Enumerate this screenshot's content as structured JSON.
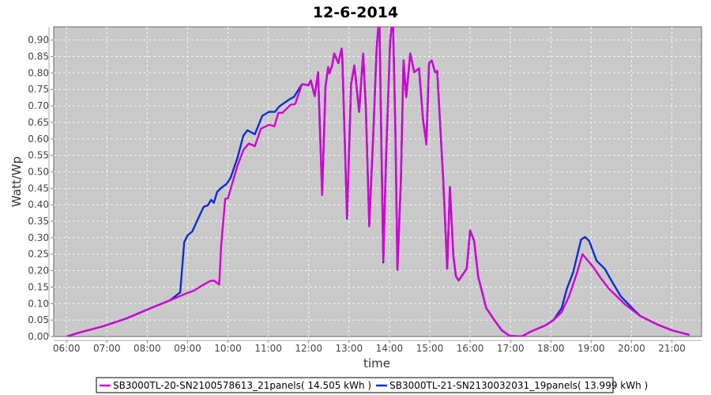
{
  "chart_data": {
    "type": "line",
    "title": "12-6-2014",
    "xlabel": "time",
    "ylabel": "Watt/Wp",
    "xlim": [
      "05:41",
      "21:44"
    ],
    "ylim": [
      0,
      0.94
    ],
    "grid": true,
    "legend_position": "bottom",
    "plot_background": "#c9c9c9",
    "x_ticks": [
      "06:00",
      "07:00",
      "08:00",
      "09:00",
      "10:00",
      "11:00",
      "12:00",
      "13:00",
      "14:00",
      "15:00",
      "16:00",
      "17:00",
      "18:00",
      "19:00",
      "20:00",
      "21:00"
    ],
    "y_ticks": [
      "0.00",
      "0.05",
      "0.10",
      "0.15",
      "0.20",
      "0.25",
      "0.30",
      "0.35",
      "0.40",
      "0.45",
      "0.50",
      "0.55",
      "0.60",
      "0.65",
      "0.70",
      "0.75",
      "0.80",
      "0.85",
      "0.90"
    ],
    "series": [
      {
        "name": "SB3000TL-21-SN2130032031_19panels( 13.999 kWh )",
        "color": "#0a2fd0",
        "points": [
          [
            "06:00",
            0
          ],
          [
            "06:19",
            0.012
          ],
          [
            "06:54",
            0.031
          ],
          [
            "07:29",
            0.055
          ],
          [
            "08:05",
            0.086
          ],
          [
            "08:34",
            0.11
          ],
          [
            "08:49",
            0.134
          ],
          [
            "08:55",
            0.286
          ],
          [
            "09:00",
            0.307
          ],
          [
            "09:07",
            0.319
          ],
          [
            "09:15",
            0.355
          ],
          [
            "09:24",
            0.394
          ],
          [
            "09:30",
            0.398
          ],
          [
            "09:35",
            0.415
          ],
          [
            "09:39",
            0.406
          ],
          [
            "09:44",
            0.439
          ],
          [
            "09:50",
            0.451
          ],
          [
            "09:58",
            0.463
          ],
          [
            "10:04",
            0.482
          ],
          [
            "10:14",
            0.542
          ],
          [
            "10:23",
            0.61
          ],
          [
            "10:29",
            0.626
          ],
          [
            "10:40",
            0.614
          ],
          [
            "10:51",
            0.67
          ],
          [
            "11:01",
            0.682
          ],
          [
            "11:10",
            0.682
          ],
          [
            "11:16",
            0.698
          ],
          [
            "11:33",
            0.722
          ],
          [
            "11:38",
            0.727
          ],
          [
            "11:50",
            0.766
          ],
          [
            "12:00",
            0.763
          ],
          [
            "12:03",
            0.778
          ],
          [
            "12:09",
            0.73
          ],
          [
            "12:14",
            0.802
          ],
          [
            "12:20",
            0.43
          ],
          [
            "12:25",
            0.758
          ],
          [
            "12:29",
            0.818
          ],
          [
            "12:31",
            0.799
          ],
          [
            "12:35",
            0.823
          ],
          [
            "12:38",
            0.859
          ],
          [
            "12:44",
            0.83
          ],
          [
            "12:49",
            0.874
          ],
          [
            "12:50",
            0.847
          ],
          [
            "12:57",
            0.358
          ],
          [
            "13:03",
            0.766
          ],
          [
            "13:08",
            0.823
          ],
          [
            "13:15",
            0.682
          ],
          [
            "13:21",
            0.859
          ],
          [
            "13:25",
            0.694
          ],
          [
            "13:30",
            0.34
          ],
          [
            "13:36",
            0.614
          ],
          [
            "13:41",
            0.871
          ],
          [
            "13:45",
            0.98
          ],
          [
            "13:51",
            0.225
          ],
          [
            "13:55",
            0.535
          ],
          [
            "14:01",
            0.895
          ],
          [
            "14:05",
            0.98
          ],
          [
            "14:09",
            0.614
          ],
          [
            "14:12",
            0.205
          ],
          [
            "14:17",
            0.47
          ],
          [
            "14:21",
            0.838
          ],
          [
            "14:25",
            0.727
          ],
          [
            "14:31",
            0.859
          ],
          [
            "14:37",
            0.802
          ],
          [
            "14:44",
            0.814
          ],
          [
            "14:50",
            0.658
          ],
          [
            "14:55",
            0.59
          ],
          [
            "14:59",
            0.83
          ],
          [
            "15:03",
            0.838
          ],
          [
            "15:08",
            0.802
          ],
          [
            "15:11",
            0.806
          ],
          [
            "15:20",
            0.478
          ],
          [
            "15:26",
            0.206
          ],
          [
            "15:30",
            0.454
          ],
          [
            "15:35",
            0.247
          ],
          [
            "15:39",
            0.182
          ],
          [
            "15:43",
            0.17
          ],
          [
            "15:55",
            0.206
          ],
          [
            "16:00",
            0.322
          ],
          [
            "16:06",
            0.29
          ],
          [
            "16:12",
            0.182
          ],
          [
            "16:18",
            0.134
          ],
          [
            "16:24",
            0.086
          ],
          [
            "16:36",
            0.05
          ],
          [
            "16:47",
            0.019
          ],
          [
            "16:59",
            0.002
          ],
          [
            "17:17",
            0
          ],
          [
            "17:29",
            0.014
          ],
          [
            "17:52",
            0.034
          ],
          [
            "18:04",
            0.05
          ],
          [
            "18:16",
            0.086
          ],
          [
            "18:24",
            0.146
          ],
          [
            "18:33",
            0.194
          ],
          [
            "18:45",
            0.295
          ],
          [
            "18:51",
            0.302
          ],
          [
            "18:57",
            0.29
          ],
          [
            "19:08",
            0.23
          ],
          [
            "19:20",
            0.206
          ],
          [
            "19:32",
            0.163
          ],
          [
            "19:44",
            0.122
          ],
          [
            "20:01",
            0.086
          ],
          [
            "20:13",
            0.062
          ],
          [
            "20:37",
            0.038
          ],
          [
            "21:00",
            0.019
          ],
          [
            "21:26",
            0.005
          ]
        ]
      },
      {
        "name": "SB3000TL-20-SN2100578613_21panels( 14.505 kWh )",
        "color": "#d400d4",
        "points": [
          [
            "06:00",
            0
          ],
          [
            "06:19",
            0.012
          ],
          [
            "06:54",
            0.031
          ],
          [
            "07:29",
            0.055
          ],
          [
            "08:05",
            0.086
          ],
          [
            "08:34",
            0.11
          ],
          [
            "08:57",
            0.13
          ],
          [
            "09:09",
            0.139
          ],
          [
            "09:21",
            0.154
          ],
          [
            "09:33",
            0.168
          ],
          [
            "09:39",
            0.17
          ],
          [
            "09:47",
            0.158
          ],
          [
            "09:50",
            0.278
          ],
          [
            "09:56",
            0.418
          ],
          [
            "10:00",
            0.42
          ],
          [
            "10:14",
            0.518
          ],
          [
            "10:23",
            0.566
          ],
          [
            "10:31",
            0.586
          ],
          [
            "10:40",
            0.578
          ],
          [
            "10:49",
            0.631
          ],
          [
            "11:01",
            0.643
          ],
          [
            "11:09",
            0.638
          ],
          [
            "11:15",
            0.679
          ],
          [
            "11:21",
            0.679
          ],
          [
            "11:33",
            0.703
          ],
          [
            "11:40",
            0.706
          ],
          [
            "11:50",
            0.766
          ],
          [
            "12:00",
            0.763
          ],
          [
            "12:03",
            0.778
          ],
          [
            "12:09",
            0.73
          ],
          [
            "12:14",
            0.802
          ],
          [
            "12:20",
            0.43
          ],
          [
            "12:25",
            0.758
          ],
          [
            "12:29",
            0.818
          ],
          [
            "12:31",
            0.799
          ],
          [
            "12:35",
            0.823
          ],
          [
            "12:38",
            0.859
          ],
          [
            "12:44",
            0.83
          ],
          [
            "12:49",
            0.874
          ],
          [
            "12:50",
            0.847
          ],
          [
            "12:57",
            0.362
          ],
          [
            "13:03",
            0.766
          ],
          [
            "13:08",
            0.823
          ],
          [
            "13:15",
            0.682
          ],
          [
            "13:21",
            0.859
          ],
          [
            "13:25",
            0.694
          ],
          [
            "13:30",
            0.334
          ],
          [
            "13:36",
            0.614
          ],
          [
            "13:41",
            0.871
          ],
          [
            "13:45",
            0.98
          ],
          [
            "13:51",
            0.23
          ],
          [
            "13:55",
            0.535
          ],
          [
            "14:01",
            0.895
          ],
          [
            "14:05",
            0.98
          ],
          [
            "14:09",
            0.614
          ],
          [
            "14:12",
            0.202
          ],
          [
            "14:17",
            0.47
          ],
          [
            "14:21",
            0.838
          ],
          [
            "14:25",
            0.727
          ],
          [
            "14:31",
            0.859
          ],
          [
            "14:37",
            0.802
          ],
          [
            "14:44",
            0.814
          ],
          [
            "14:50",
            0.658
          ],
          [
            "14:55",
            0.583
          ],
          [
            "14:59",
            0.83
          ],
          [
            "15:03",
            0.838
          ],
          [
            "15:08",
            0.802
          ],
          [
            "15:11",
            0.806
          ],
          [
            "15:20",
            0.478
          ],
          [
            "15:26",
            0.206
          ],
          [
            "15:30",
            0.454
          ],
          [
            "15:35",
            0.247
          ],
          [
            "15:39",
            0.182
          ],
          [
            "15:43",
            0.17
          ],
          [
            "15:55",
            0.206
          ],
          [
            "16:00",
            0.322
          ],
          [
            "16:06",
            0.29
          ],
          [
            "16:12",
            0.182
          ],
          [
            "16:18",
            0.134
          ],
          [
            "16:24",
            0.086
          ],
          [
            "16:36",
            0.05
          ],
          [
            "16:47",
            0.019
          ],
          [
            "16:59",
            0.002
          ],
          [
            "17:17",
            0
          ],
          [
            "17:29",
            0.014
          ],
          [
            "17:52",
            0.034
          ],
          [
            "18:04",
            0.05
          ],
          [
            "18:16",
            0.074
          ],
          [
            "18:27",
            0.122
          ],
          [
            "18:39",
            0.194
          ],
          [
            "18:47",
            0.25
          ],
          [
            "19:03",
            0.211
          ],
          [
            "19:14",
            0.178
          ],
          [
            "19:26",
            0.146
          ],
          [
            "19:50",
            0.098
          ],
          [
            "20:13",
            0.062
          ],
          [
            "20:37",
            0.038
          ],
          [
            "21:00",
            0.019
          ],
          [
            "21:26",
            0.005
          ]
        ]
      }
    ],
    "legend_order": [
      1,
      0
    ]
  }
}
